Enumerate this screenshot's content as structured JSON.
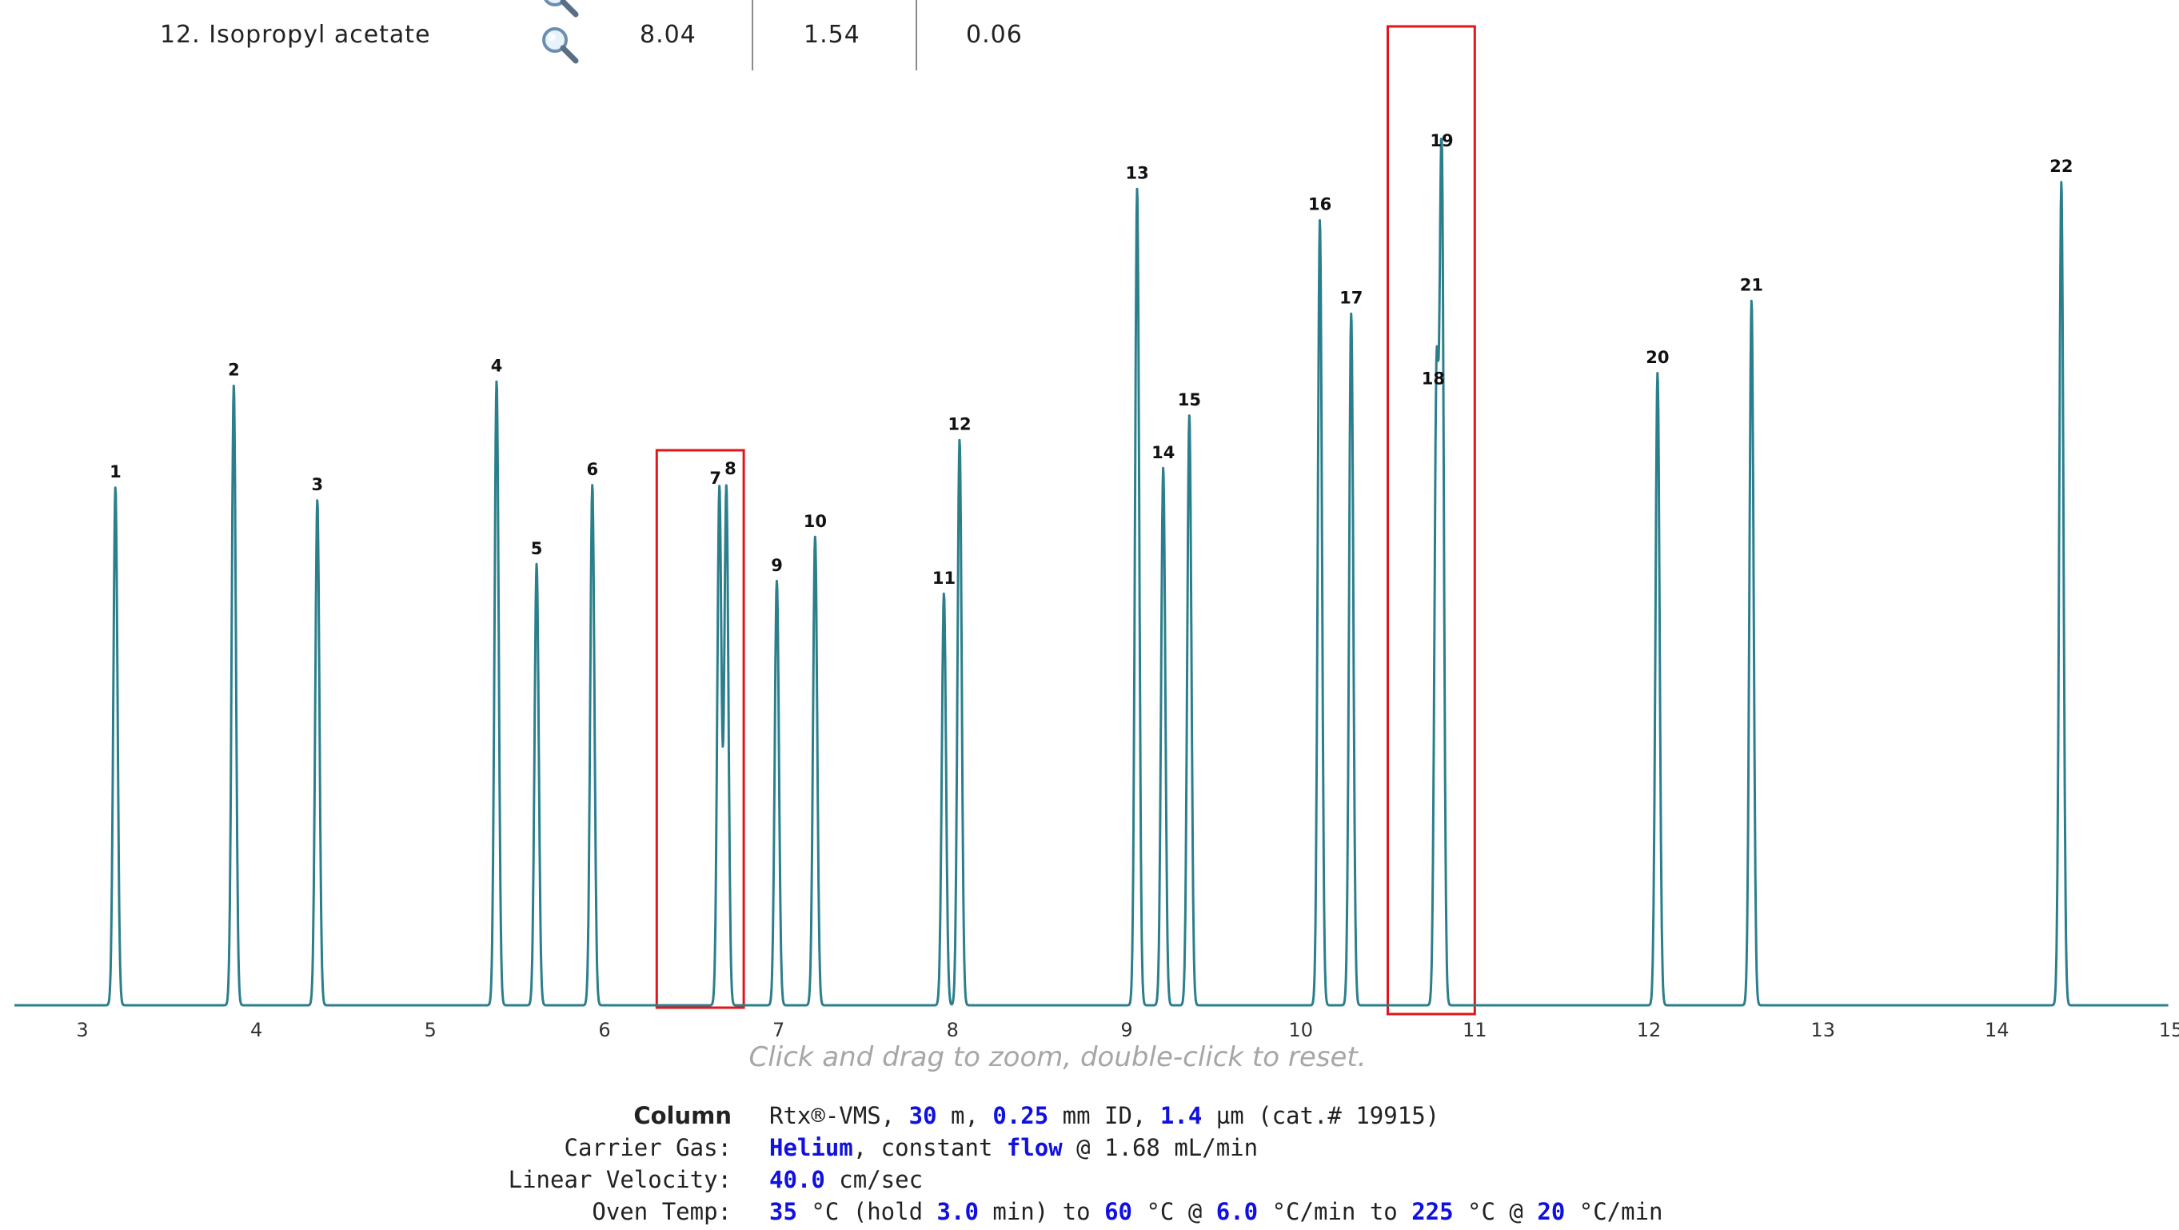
{
  "table_row": {
    "compound": "12. Isopropyl acetate",
    "retention_time": "8.04",
    "value_2": "1.54",
    "value_3": "0.06",
    "icon": "magnifier-icon"
  },
  "hint": "Click and drag to zoom, double-click to reset.",
  "conditions": {
    "column": {
      "label": "Column",
      "prefix": "Rtx®-VMS, ",
      "length": "30",
      "length_unit": " m, ",
      "id": "0.25",
      "id_unit": " mm ID, ",
      "film": "1.4",
      "film_unit": " µm (cat.# 19915)"
    },
    "carrier_gas": {
      "label": "Carrier Gas:",
      "gas": "Helium",
      "mid": ", constant ",
      "mode": "flow",
      "rest": " @ 1.68 mL/min"
    },
    "linear_velocity": {
      "label": "Linear Velocity:",
      "value": "40.0",
      "unit": " cm/sec"
    },
    "oven_temp": {
      "label": "Oven Temp:",
      "t1": "35",
      "u1": " °C (hold ",
      "hold": "3.0",
      "u2": " min) to ",
      "t2": "60",
      "u3": " °C @ ",
      "r1": "6.0",
      "u4": " °C/min to ",
      "t3": "225",
      "u5": " °C @ ",
      "r2": "20",
      "u6": " °C/min"
    }
  },
  "chart_data": {
    "type": "line",
    "title": "",
    "xlabel": "",
    "ylabel": "",
    "xlim": [
      2.6,
      15
    ],
    "ylim": [
      0,
      1.0
    ],
    "x_ticks": [
      "3",
      "4",
      "5",
      "6",
      "7",
      "8",
      "9",
      "10",
      "11",
      "12",
      "13",
      "14",
      "15"
    ],
    "series_color": "#2b7f8c",
    "grid": false,
    "peaks": [
      {
        "label": "1",
        "rt": 3.19,
        "height": 0.61
      },
      {
        "label": "2",
        "rt": 3.87,
        "height": 0.73
      },
      {
        "label": "3",
        "rt": 4.35,
        "height": 0.595
      },
      {
        "label": "4",
        "rt": 5.38,
        "height": 0.735
      },
      {
        "label": "5",
        "rt": 5.61,
        "height": 0.52
      },
      {
        "label": "6",
        "rt": 5.93,
        "height": 0.613
      },
      {
        "label": "7",
        "rt": 6.66,
        "height": 0.61
      },
      {
        "label": "8",
        "rt": 6.7,
        "height": 0.61
      },
      {
        "label": "9",
        "rt": 6.99,
        "height": 0.5
      },
      {
        "label": "10",
        "rt": 7.21,
        "height": 0.552
      },
      {
        "label": "11",
        "rt": 7.95,
        "height": 0.485
      },
      {
        "label": "12",
        "rt": 8.04,
        "height": 0.666
      },
      {
        "label": "13",
        "rt": 9.06,
        "height": 0.962
      },
      {
        "label": "14",
        "rt": 9.21,
        "height": 0.633
      },
      {
        "label": "15",
        "rt": 9.36,
        "height": 0.695
      },
      {
        "label": "16",
        "rt": 10.11,
        "height": 0.925
      },
      {
        "label": "17",
        "rt": 10.29,
        "height": 0.815
      },
      {
        "label": "18",
        "rt": 10.78,
        "height": 0.72
      },
      {
        "label": "19",
        "rt": 10.81,
        "height": 1.0
      },
      {
        "label": "20",
        "rt": 12.05,
        "height": 0.745
      },
      {
        "label": "21",
        "rt": 12.59,
        "height": 0.83
      },
      {
        "label": "22",
        "rt": 14.37,
        "height": 0.97
      }
    ],
    "highlight_boxes": [
      {
        "x_start": 6.3,
        "x_end": 6.8
      },
      {
        "x_start": 10.5,
        "x_end": 11.0
      }
    ],
    "highlight_color": "#e0161b"
  }
}
